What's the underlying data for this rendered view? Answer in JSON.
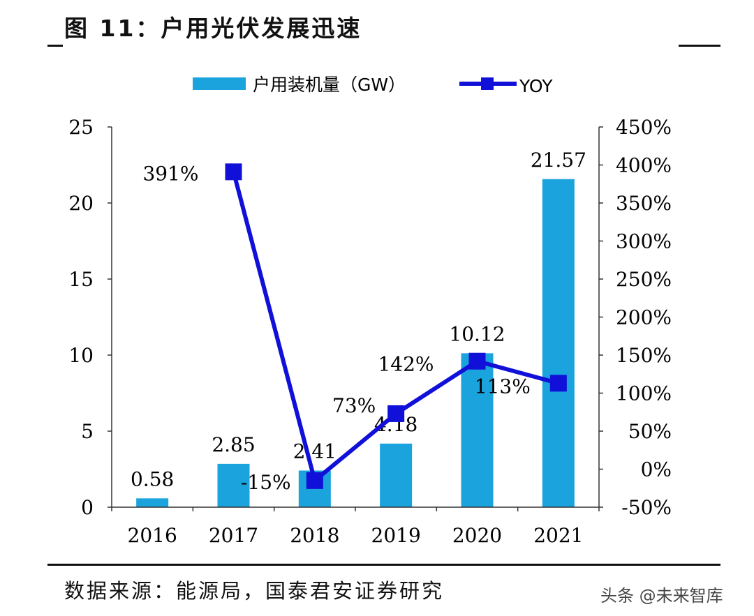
{
  "header": {
    "title": "图 11：户用光伏发展迅速"
  },
  "footer": {
    "source": "数据来源：能源局，国泰君安证券研究",
    "watermark": "头条 @未来智库"
  },
  "chart_data": {
    "type": "bar",
    "title": "户用光伏发展迅速",
    "categories": [
      "2016",
      "2017",
      "2018",
      "2019",
      "2020",
      "2021"
    ],
    "series": [
      {
        "name": "户用装机量（GW）",
        "type": "bar",
        "axis": "left",
        "values": [
          0.58,
          2.85,
          2.41,
          4.18,
          10.12,
          21.57
        ],
        "labels": [
          "0.58",
          "2.85",
          "2.41",
          "4.18",
          "10.12",
          "21.57"
        ],
        "color": "#1aa3dc"
      },
      {
        "name": "YOY",
        "type": "line",
        "axis": "right",
        "values": [
          null,
          391,
          -15,
          73,
          142,
          113
        ],
        "labels": [
          "",
          "391%",
          "-15%",
          "73%",
          "142%",
          "113%"
        ],
        "color": "#1010d8"
      }
    ],
    "y_left": {
      "min": 0,
      "max": 25,
      "ticks": [
        "0",
        "5",
        "10",
        "15",
        "20",
        "25"
      ]
    },
    "y_right": {
      "min": -50,
      "max": 450,
      "ticks": [
        "-50%",
        "0%",
        "50%",
        "100%",
        "150%",
        "200%",
        "250%",
        "300%",
        "350%",
        "400%",
        "450%"
      ]
    },
    "legend_position": "top-center",
    "grid": false
  }
}
